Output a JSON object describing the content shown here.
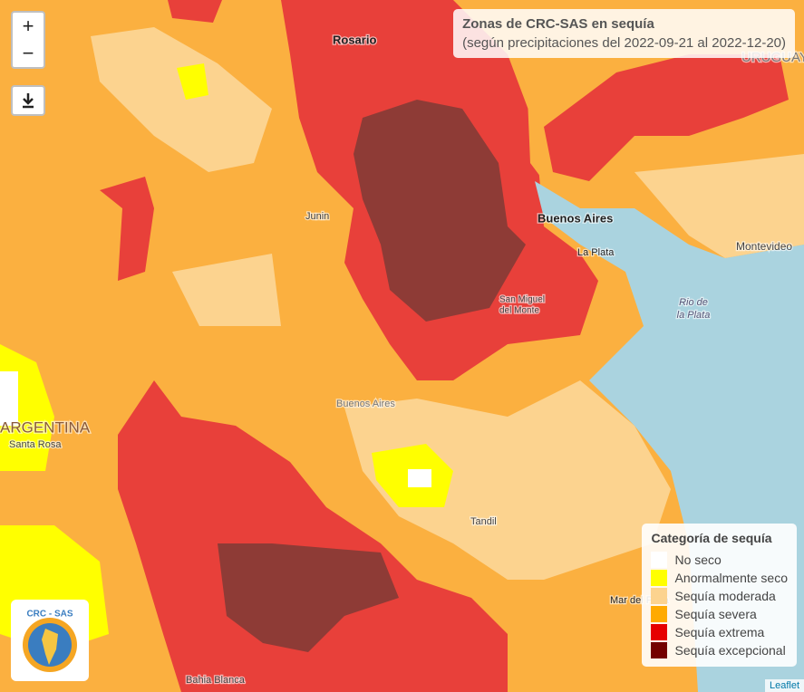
{
  "header": {
    "title": "Zonas de CRC-SAS en sequía",
    "subtitle": "(según precipitaciones del 2022-09-21 al 2022-12-20)"
  },
  "controls": {
    "zoom_in": "+",
    "zoom_out": "−"
  },
  "legend": {
    "title": "Categoría de sequía",
    "items": [
      {
        "label": "No seco",
        "color": "#ffffff"
      },
      {
        "label": "Anormalmente seco",
        "color": "#ffff00"
      },
      {
        "label": "Sequía moderada",
        "color": "#fcd38f"
      },
      {
        "label": "Sequía severa",
        "color": "#ffaa00"
      },
      {
        "label": "Sequía extrema",
        "color": "#e60000"
      },
      {
        "label": "Sequía excepcional",
        "color": "#730000"
      }
    ]
  },
  "places": [
    "Rosario",
    "Buenos Aires",
    "La Plata",
    "San Miguel",
    "del Monte",
    "Junin",
    "Montevideo",
    "Rio de",
    "la Plata",
    "Buenos Aires",
    "ARGENTINA",
    "Santa Rosa",
    "Tandil",
    "Mar del Plata",
    "Bahia Blanca",
    "URUGUAY"
  ],
  "logo": "CRC - SAS",
  "attribution": "Leaflet"
}
